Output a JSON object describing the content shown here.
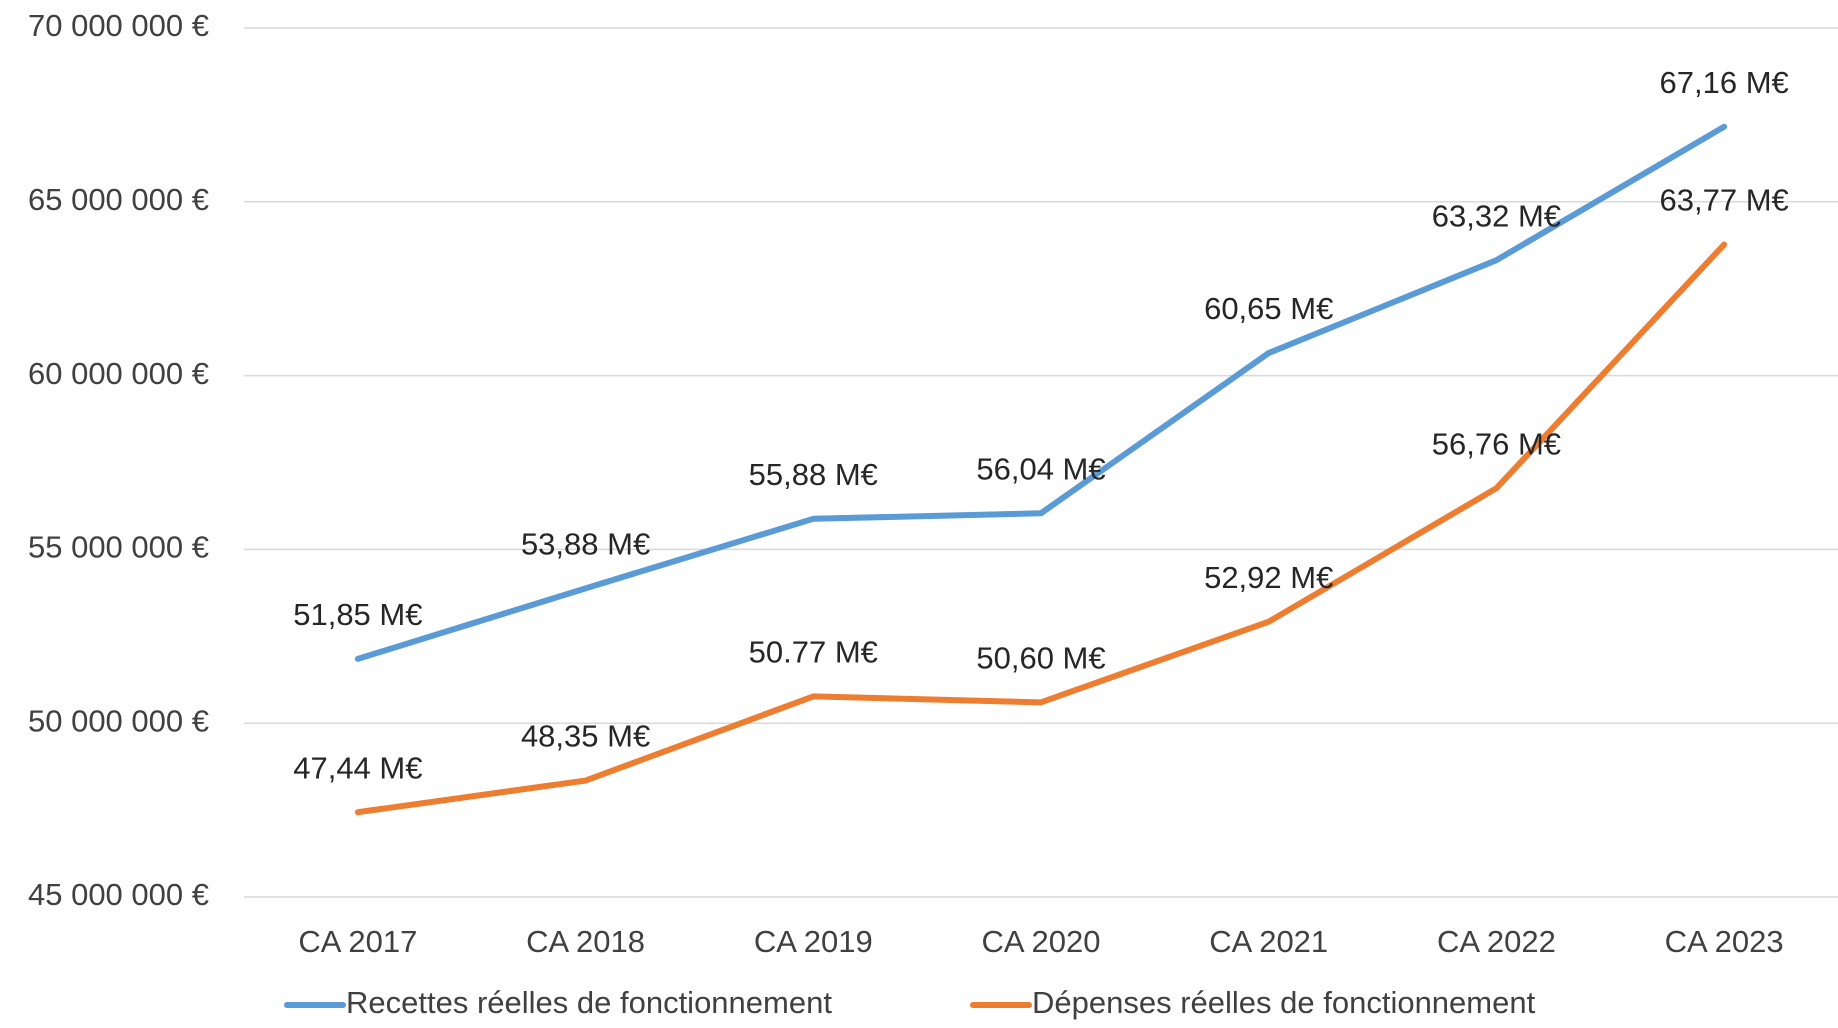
{
  "chart_data": {
    "type": "line",
    "categories": [
      "CA 2017",
      "CA 2018",
      "CA 2019",
      "CA 2020",
      "CA 2021",
      "CA 2022",
      "CA 2023"
    ],
    "series": [
      {
        "name": "Recettes réelles de fonctionnement",
        "color": "#5b9bd5",
        "values": [
          51850000,
          53880000,
          55880000,
          56040000,
          60650000,
          63320000,
          67160000
        ],
        "value_labels": [
          "51,85 M€",
          "53,88 M€",
          "55,88 M€",
          "56,04 M€",
          "60,65 M€",
          "63,32 M€",
          "67,16 M€"
        ]
      },
      {
        "name": "Dépenses réelles de fonctionnement",
        "color": "#ed7d31",
        "values": [
          47440000,
          48350000,
          50770000,
          50600000,
          52920000,
          56760000,
          63770000
        ],
        "value_labels": [
          "47,44 M€",
          "48,35 M€",
          "50.77 M€",
          "50,60 M€",
          "52,92 M€",
          "56,76 M€",
          "63,77 M€"
        ]
      }
    ],
    "ylim": [
      45000000,
      70000000
    ],
    "yticks": [
      {
        "value": 45000000,
        "label": "45 000 000 €"
      },
      {
        "value": 50000000,
        "label": "50 000 000 €"
      },
      {
        "value": 55000000,
        "label": "55 000 000 €"
      },
      {
        "value": 60000000,
        "label": "60 000 000 €"
      },
      {
        "value": 65000000,
        "label": "65 000 000 €"
      },
      {
        "value": 70000000,
        "label": "70 000 000 €"
      }
    ],
    "grid": true,
    "legend": "bottom"
  }
}
